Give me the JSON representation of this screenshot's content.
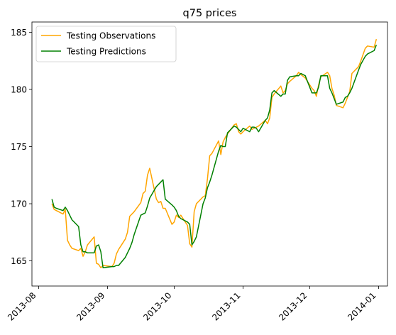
{
  "chart_data": {
    "type": "line",
    "title": "q75 prices",
    "xlabel": "",
    "ylabel": "",
    "xlim": [
      "2013-07-29",
      "2014-01-05"
    ],
    "ylim": [
      162.8,
      185.9
    ],
    "x_ticks": [
      "2013-08",
      "2013-09",
      "2013-10",
      "2013-11",
      "2013-12",
      "2014-01"
    ],
    "x_tick_dates": [
      "2013-08-01",
      "2013-09-01",
      "2013-10-01",
      "2013-11-01",
      "2013-12-01",
      "2014-01-01"
    ],
    "y_ticks": [
      165,
      170,
      175,
      180,
      185
    ],
    "legend_position": "upper-left",
    "grid": false,
    "series": [
      {
        "name": "Testing Observations",
        "color": "#ffa500",
        "x": [
          "2013-08-07",
          "2013-08-08",
          "2013-08-09",
          "2013-08-12",
          "2013-08-13",
          "2013-08-14",
          "2013-08-15",
          "2013-08-16",
          "2013-08-19",
          "2013-08-20",
          "2013-08-21",
          "2013-08-22",
          "2013-08-23",
          "2013-08-26",
          "2013-08-27",
          "2013-08-28",
          "2013-08-29",
          "2013-08-30",
          "2013-09-03",
          "2013-09-04",
          "2013-09-05",
          "2013-09-06",
          "2013-09-09",
          "2013-09-10",
          "2013-09-11",
          "2013-09-12",
          "2013-09-13",
          "2013-09-16",
          "2013-09-17",
          "2013-09-18",
          "2013-09-19",
          "2013-09-20",
          "2013-09-23",
          "2013-09-24",
          "2013-09-25",
          "2013-09-26",
          "2013-09-27",
          "2013-09-30",
          "2013-10-01",
          "2013-10-02",
          "2013-10-03",
          "2013-10-04",
          "2013-10-07",
          "2013-10-08",
          "2013-10-09",
          "2013-10-10",
          "2013-10-11",
          "2013-10-14",
          "2013-10-15",
          "2013-10-16",
          "2013-10-17",
          "2013-10-18",
          "2013-10-21",
          "2013-10-22",
          "2013-10-23",
          "2013-10-24",
          "2013-10-25",
          "2013-10-28",
          "2013-10-29",
          "2013-10-30",
          "2013-10-31",
          "2013-11-01",
          "2013-11-04",
          "2013-11-05",
          "2013-11-06",
          "2013-11-07",
          "2013-11-08",
          "2013-11-11",
          "2013-11-12",
          "2013-11-13",
          "2013-11-14",
          "2013-11-15",
          "2013-11-18",
          "2013-11-19",
          "2013-11-20",
          "2013-11-21",
          "2013-11-22",
          "2013-11-25",
          "2013-11-26",
          "2013-11-27",
          "2013-11-29",
          "2013-12-02",
          "2013-12-03",
          "2013-12-04",
          "2013-12-05",
          "2013-12-06",
          "2013-12-09",
          "2013-12-10",
          "2013-12-11",
          "2013-12-12",
          "2013-12-13",
          "2013-12-16",
          "2013-12-17",
          "2013-12-18",
          "2013-12-19",
          "2013-12-20",
          "2013-12-23",
          "2013-12-24",
          "2013-12-26",
          "2013-12-27",
          "2013-12-30",
          "2013-12-31"
        ],
        "y": [
          170.0,
          169.5,
          169.4,
          169.1,
          169.5,
          166.8,
          166.4,
          166.1,
          165.9,
          166.1,
          165.4,
          165.8,
          166.4,
          167.1,
          164.8,
          164.7,
          164.4,
          164.6,
          164.5,
          164.8,
          165.6,
          166.0,
          166.9,
          167.5,
          168.9,
          169.1,
          169.3,
          170.1,
          170.9,
          171.1,
          172.5,
          173.1,
          170.4,
          170.1,
          170.2,
          169.6,
          169.6,
          168.2,
          168.4,
          169.0,
          168.8,
          169.0,
          168.1,
          166.5,
          166.2,
          169.3,
          170.0,
          170.6,
          170.7,
          172.2,
          174.2,
          174.4,
          175.5,
          174.3,
          175.4,
          175.8,
          176.1,
          176.9,
          177.0,
          176.3,
          176.1,
          176.3,
          176.8,
          176.5,
          176.6,
          176.7,
          176.8,
          177.3,
          177.0,
          177.5,
          179.3,
          179.6,
          180.3,
          179.7,
          179.9,
          180.5,
          180.7,
          181.2,
          181.5,
          181.3,
          181.0,
          180.1,
          179.9,
          179.4,
          180.4,
          181.1,
          181.5,
          181.2,
          180.1,
          179.5,
          178.6,
          178.4,
          178.8,
          179.3,
          179.8,
          181.4,
          182.0,
          182.5,
          183.6,
          183.8,
          183.7,
          184.4
        ]
      },
      {
        "name": "Testing Predictions",
        "color": "#008000",
        "x": [
          "2013-08-07",
          "2013-08-08",
          "2013-08-09",
          "2013-08-12",
          "2013-08-13",
          "2013-08-14",
          "2013-08-15",
          "2013-08-16",
          "2013-08-19",
          "2013-08-20",
          "2013-08-21",
          "2013-08-22",
          "2013-08-23",
          "2013-08-26",
          "2013-08-27",
          "2013-08-28",
          "2013-08-29",
          "2013-08-30",
          "2013-09-03",
          "2013-09-04",
          "2013-09-05",
          "2013-09-06",
          "2013-09-09",
          "2013-09-10",
          "2013-09-11",
          "2013-09-12",
          "2013-09-13",
          "2013-09-16",
          "2013-09-17",
          "2013-09-18",
          "2013-09-19",
          "2013-09-20",
          "2013-09-23",
          "2013-09-24",
          "2013-09-25",
          "2013-09-26",
          "2013-09-27",
          "2013-09-30",
          "2013-10-01",
          "2013-10-02",
          "2013-10-03",
          "2013-10-04",
          "2013-10-07",
          "2013-10-08",
          "2013-10-09",
          "2013-10-10",
          "2013-10-11",
          "2013-10-14",
          "2013-10-15",
          "2013-10-16",
          "2013-10-17",
          "2013-10-18",
          "2013-10-21",
          "2013-10-22",
          "2013-10-23",
          "2013-10-24",
          "2013-10-25",
          "2013-10-28",
          "2013-10-29",
          "2013-10-30",
          "2013-10-31",
          "2013-11-01",
          "2013-11-04",
          "2013-11-05",
          "2013-11-06",
          "2013-11-07",
          "2013-11-08",
          "2013-11-11",
          "2013-11-12",
          "2013-11-13",
          "2013-11-14",
          "2013-11-15",
          "2013-11-18",
          "2013-11-19",
          "2013-11-20",
          "2013-11-21",
          "2013-11-22",
          "2013-11-25",
          "2013-11-26",
          "2013-11-27",
          "2013-11-29",
          "2013-12-02",
          "2013-12-03",
          "2013-12-04",
          "2013-12-05",
          "2013-12-06",
          "2013-12-09",
          "2013-12-10",
          "2013-12-11",
          "2013-12-12",
          "2013-12-13",
          "2013-12-16",
          "2013-12-17",
          "2013-12-18",
          "2013-12-19",
          "2013-12-20",
          "2013-12-23",
          "2013-12-24",
          "2013-12-26",
          "2013-12-27",
          "2013-12-30",
          "2013-12-31"
        ],
        "y": [
          170.4,
          169.7,
          169.6,
          169.4,
          169.7,
          169.4,
          169.0,
          168.6,
          168.0,
          166.4,
          165.8,
          165.8,
          165.7,
          165.7,
          166.3,
          166.4,
          165.8,
          164.4,
          164.5,
          164.5,
          164.6,
          164.6,
          165.3,
          165.7,
          166.1,
          166.6,
          167.3,
          169.0,
          169.1,
          169.2,
          169.8,
          170.5,
          171.5,
          171.7,
          171.9,
          172.1,
          170.4,
          169.9,
          169.7,
          169.4,
          168.9,
          168.7,
          168.4,
          168.2,
          166.4,
          166.7,
          167.1,
          170.0,
          170.5,
          171.4,
          171.9,
          172.5,
          174.6,
          175.1,
          175.0,
          175.0,
          176.2,
          176.8,
          176.7,
          176.5,
          176.3,
          176.6,
          176.3,
          176.7,
          176.7,
          176.6,
          176.3,
          177.3,
          177.5,
          178.2,
          179.7,
          179.9,
          179.4,
          179.6,
          179.6,
          180.8,
          181.1,
          181.2,
          181.2,
          181.4,
          181.2,
          179.7,
          179.7,
          179.7,
          180.2,
          181.2,
          181.2,
          180.1,
          179.7,
          179.2,
          178.7,
          178.9,
          179.3,
          179.4,
          179.7,
          180.1,
          181.7,
          182.2,
          182.9,
          183.1,
          183.4,
          183.9
        ]
      }
    ]
  }
}
